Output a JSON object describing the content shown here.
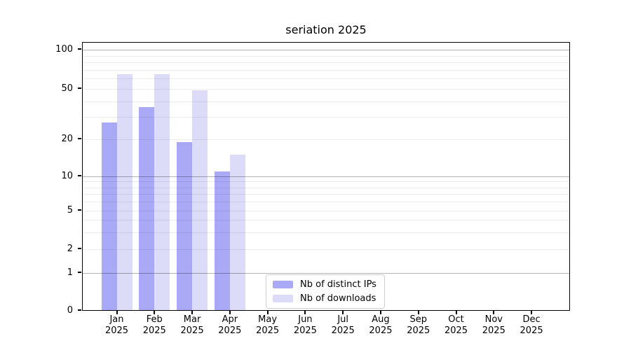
{
  "title": "seriation 2025",
  "colors": {
    "background": "#ffffff",
    "axis": "#000000",
    "grid_major": "#b3b3b3",
    "grid_minor": "#ececec",
    "ips_bar": "#a9a9f5",
    "downloads_bar": "#dcdcf8"
  },
  "legend": {
    "items": [
      {
        "label": "Nb of distinct IPs",
        "color": "#a9a9f5"
      },
      {
        "label": "Nb of downloads",
        "color": "#dcdcf8"
      }
    ]
  },
  "chart_data": {
    "type": "bar",
    "title": "seriation 2025",
    "categories": [
      "Jan",
      "Feb",
      "Mar",
      "Apr",
      "May",
      "Jun",
      "Jul",
      "Aug",
      "Sep",
      "Oct",
      "Nov",
      "Dec"
    ],
    "x_year_suffix": "2025",
    "series": [
      {
        "name": "Nb of distinct IPs",
        "color": "#a9a9f5",
        "values": [
          27,
          36,
          19,
          11,
          0,
          0,
          0,
          0,
          0,
          0,
          0,
          0
        ]
      },
      {
        "name": "Nb of downloads",
        "color": "#dcdcf8",
        "values": [
          65,
          65,
          49,
          15,
          0,
          0,
          0,
          0,
          0,
          0,
          0,
          0
        ]
      }
    ],
    "y_axis": {
      "scale": "log-like with zero baseline",
      "tick_values": [
        0,
        1,
        2,
        5,
        10,
        20,
        50,
        100
      ],
      "tick_labels": [
        "0",
        "1",
        "2",
        "5",
        "10",
        "20",
        "50",
        "100"
      ],
      "major_gridline_values": [
        1,
        10,
        100
      ],
      "minor_gridline_values": [
        2,
        3,
        4,
        5,
        6,
        7,
        8,
        9,
        20,
        30,
        40,
        50,
        60,
        70,
        80,
        90
      ],
      "range": [
        0,
        100
      ]
    },
    "xlabel": "",
    "ylabel": "",
    "grid": true,
    "legend_position": "inside bottom-center"
  }
}
